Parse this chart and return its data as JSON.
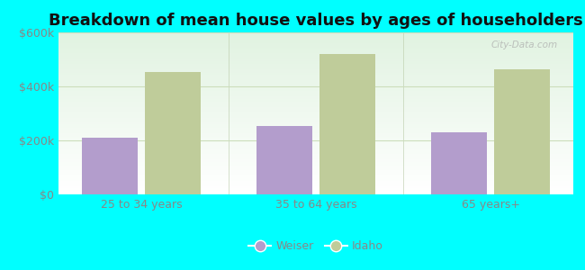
{
  "title": "Breakdown of mean house values by ages of householders",
  "categories": [
    "25 to 34 years",
    "35 to 64 years",
    "65 years+"
  ],
  "weiser_values": [
    210000,
    255000,
    230000
  ],
  "idaho_values": [
    455000,
    520000,
    465000
  ],
  "weiser_color": "#b39dcc",
  "idaho_color": "#bfcc9a",
  "ylim": [
    0,
    600000
  ],
  "yticks": [
    0,
    200000,
    400000,
    600000
  ],
  "ytick_labels": [
    "$0",
    "$200k",
    "$400k",
    "$600k"
  ],
  "background_outer": "#00ffff",
  "bar_width": 0.32,
  "legend_labels": [
    "Weiser",
    "Idaho"
  ],
  "title_fontsize": 13,
  "tick_fontsize": 9,
  "legend_fontsize": 9,
  "grid_color": "#ddeecc",
  "tick_color": "#888888"
}
